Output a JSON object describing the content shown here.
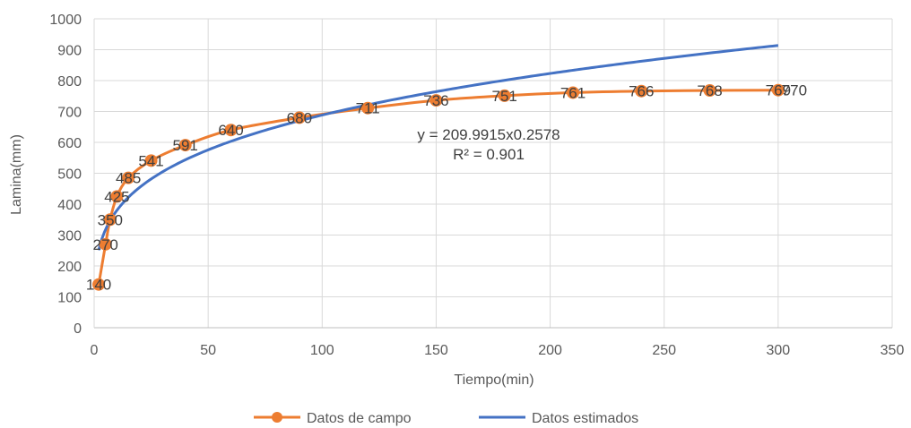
{
  "chart_data": {
    "type": "line",
    "xlabel": "Tiempo(min)",
    "ylabel": "Lamina(mm)",
    "xlim": [
      0,
      350
    ],
    "ylim": [
      0,
      1000
    ],
    "x_ticks": [
      0,
      50,
      100,
      150,
      200,
      250,
      300,
      350
    ],
    "y_ticks": [
      0,
      100,
      200,
      300,
      400,
      500,
      600,
      700,
      800,
      900,
      1000
    ],
    "grid": true,
    "legend_position": "bottom",
    "series": [
      {
        "name": "Datos de campo",
        "color": "#ED7D31",
        "marker": "circle",
        "x": [
          2,
          5,
          7,
          10,
          15,
          25,
          40,
          60,
          90,
          120,
          150,
          180,
          210,
          240,
          270,
          300
        ],
        "y": [
          140,
          270,
          350,
          425,
          485,
          541,
          591,
          640,
          680,
          711,
          736,
          751,
          761,
          766,
          768,
          769
        ],
        "data_labels": [
          "140",
          "270",
          "350",
          "425",
          "485",
          "541",
          "591",
          "640",
          "680",
          "711",
          "736",
          "751",
          "761",
          "766",
          "768",
          "769"
        ]
      },
      {
        "name": "Datos estimados",
        "color": "#4472C4",
        "marker": "none",
        "model": {
          "coefficient": 209.9915,
          "exponent": 0.2578
        },
        "x_range": [
          2,
          300
        ]
      }
    ],
    "extra_labels": [
      "770"
    ],
    "annotations": {
      "equation": "y = 209.9915x0.2578",
      "r_squared": "R² = 0.901"
    }
  }
}
